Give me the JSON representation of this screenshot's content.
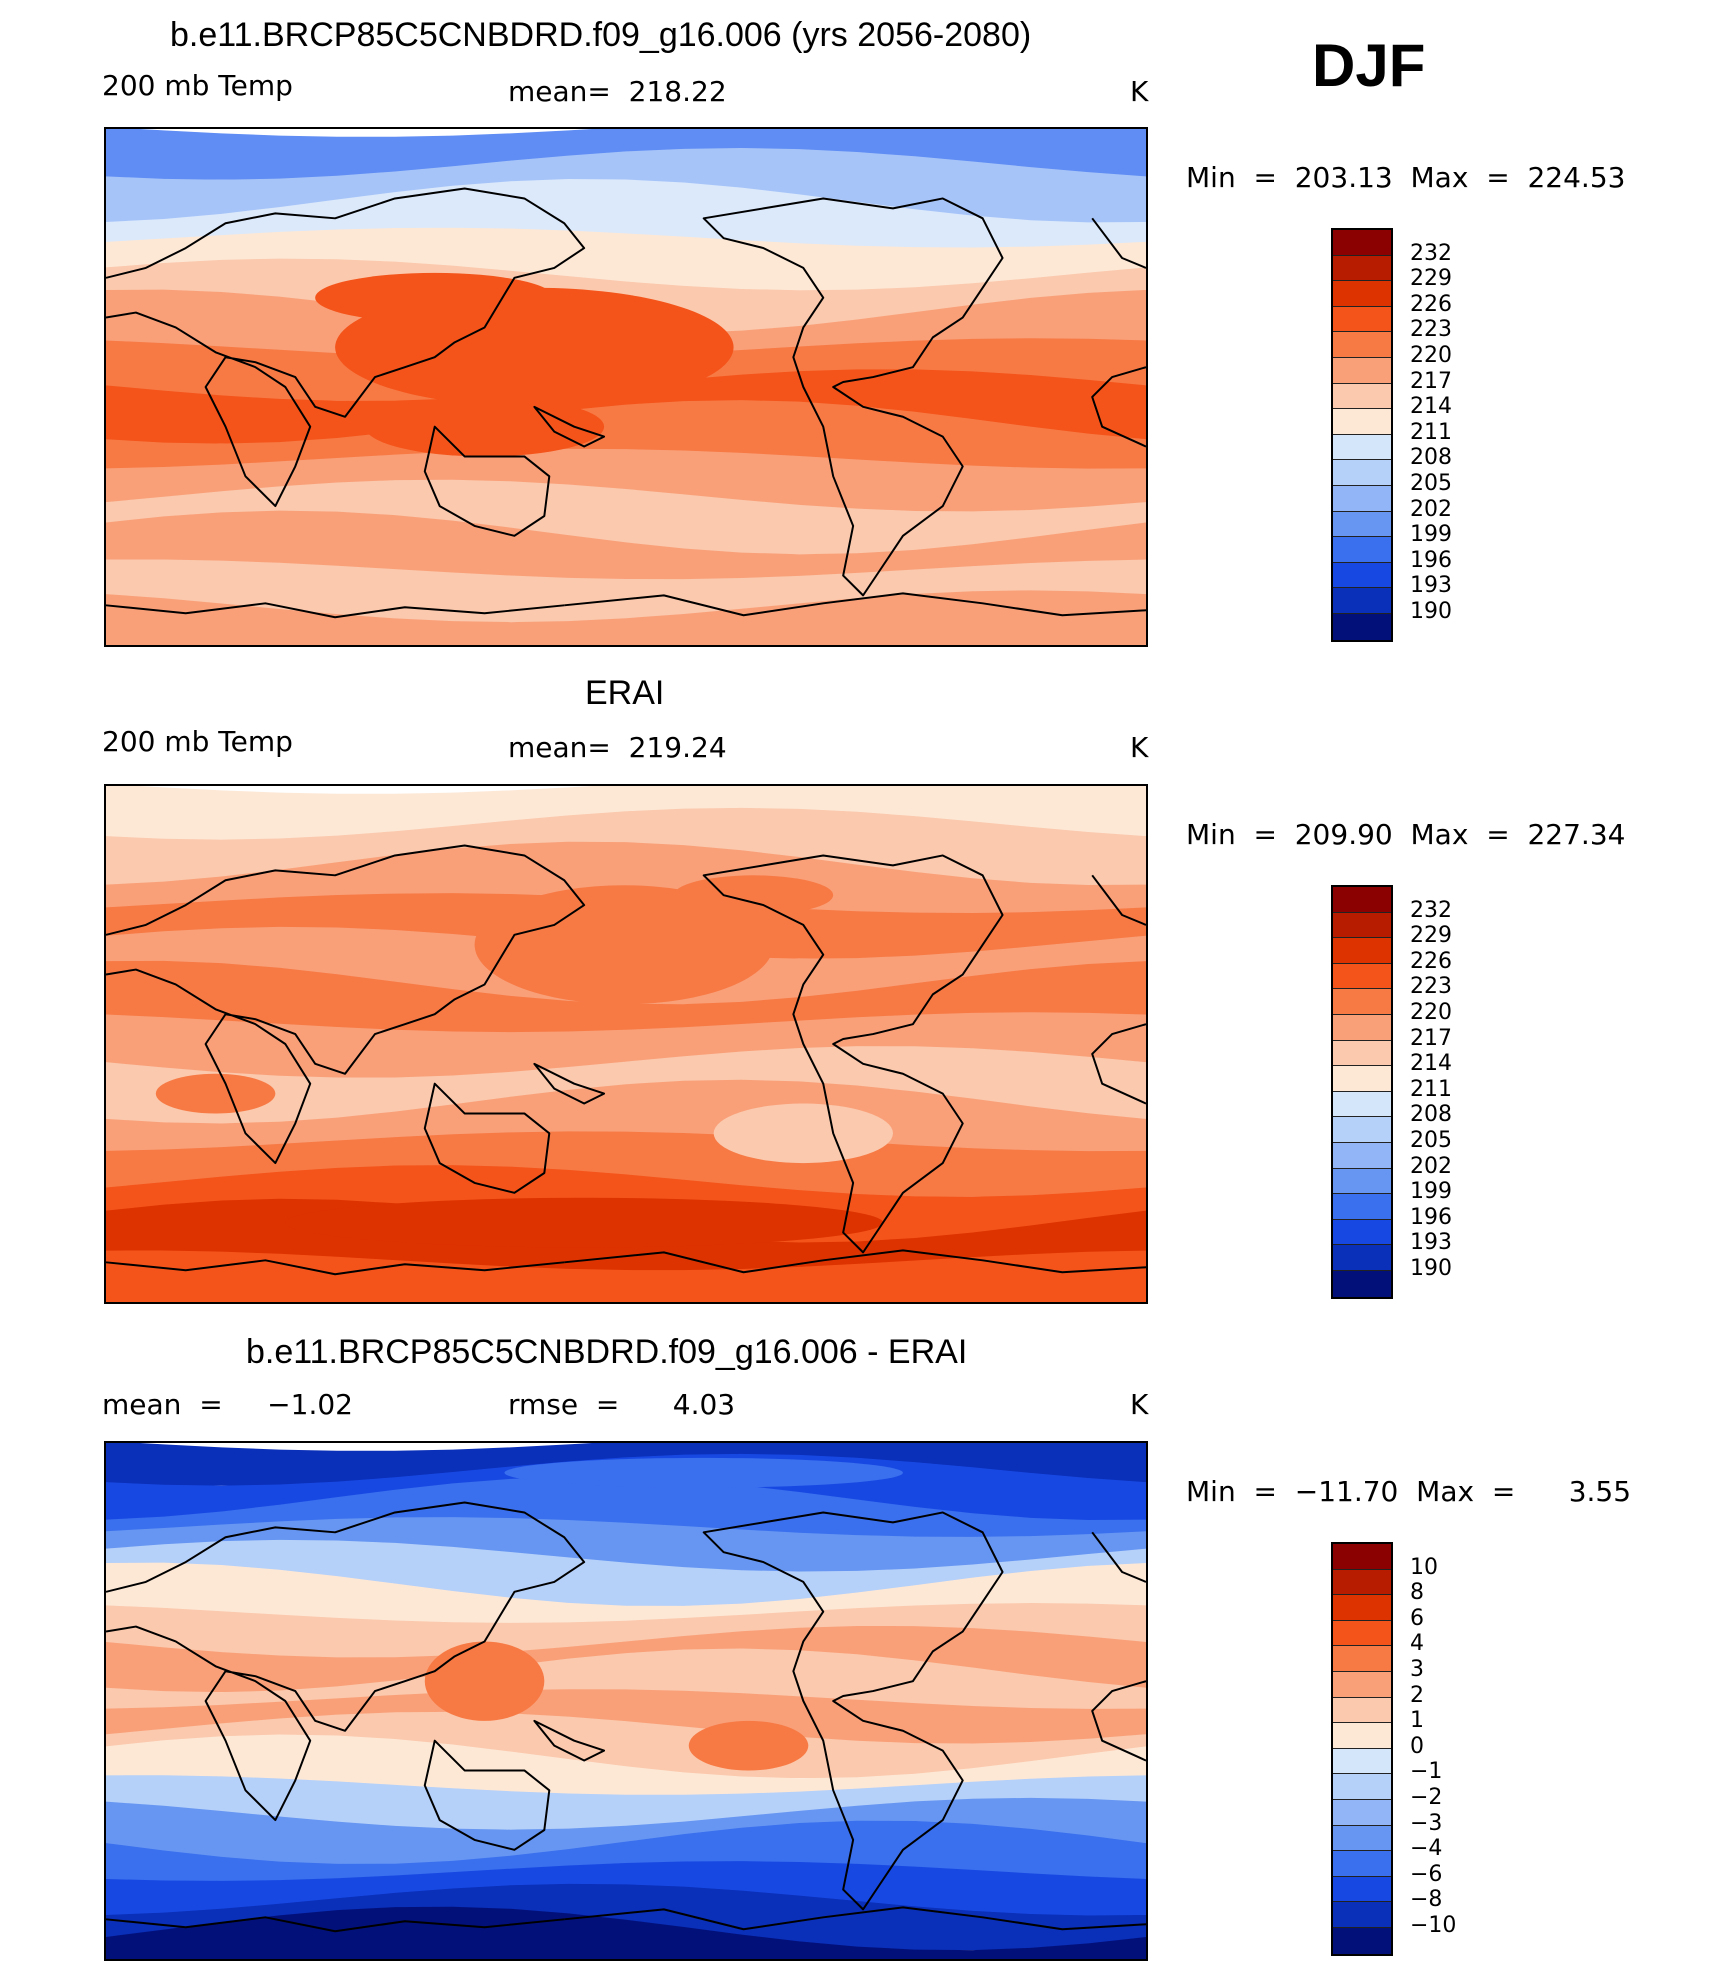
{
  "season": "DJF",
  "panels": [
    {
      "id": "model",
      "title": "b.e11.BRCP85C5CNBDRD.f09_g16.006 (yrs 2056-2080)",
      "left_label": "200 mb Temp",
      "center_label": "mean=  218.22",
      "unit": "K",
      "minmax": "Min  =  203.13  Max  =  224.53",
      "levels": [
        "232",
        "229",
        "226",
        "223",
        "220",
        "217",
        "214",
        "211",
        "208",
        "205",
        "202",
        "199",
        "196",
        "193",
        "190"
      ]
    },
    {
      "id": "obs",
      "title": "ERAI",
      "left_label": "200 mb Temp",
      "center_label": "mean=  219.24",
      "unit": "K",
      "minmax": "Min  =  209.90  Max  =  227.34",
      "levels": [
        "232",
        "229",
        "226",
        "223",
        "220",
        "217",
        "214",
        "211",
        "208",
        "205",
        "202",
        "199",
        "196",
        "193",
        "190"
      ]
    },
    {
      "id": "diff",
      "title": "b.e11.BRCP85C5CNBDRD.f09_g16.006 - ERAI",
      "left_label": "mean  =     −1.02",
      "center_label": "rmse  =      4.03",
      "unit": "K",
      "minmax": "Min  =  −11.70  Max  =      3.55",
      "levels": [
        "10",
        "8",
        "6",
        "4",
        "3",
        "2",
        "1",
        "0",
        "−1",
        "−2",
        "−3",
        "−4",
        "−6",
        "−8",
        "−10"
      ]
    }
  ],
  "colors": {
    "palette": [
      "#8b0000",
      "#b81c00",
      "#dd3300",
      "#f4541a",
      "#f77a45",
      "#f9a079",
      "#fbc9ad",
      "#fde8d6",
      "#d3e6fa",
      "#b5d0f9",
      "#91b5f6",
      "#6696f2",
      "#3a6fee",
      "#1748e2",
      "#0a2fb8",
      "#02107a"
    ],
    "model_bands": [
      "#5f8df4",
      "#a7c4f8",
      "#dbe9fb",
      "#fde8d6",
      "#fbc9ad",
      "#f9a079",
      "#f77a45",
      "#f4541a",
      "#f77a45",
      "#f9a079",
      "#fbc9ad",
      "#f9a079",
      "#fbc9ad",
      "#f9a079"
    ],
    "obs_bands": [
      "#fde8d6",
      "#fbc9ad",
      "#f9a079",
      "#f77a45",
      "#f9a079",
      "#f77a45",
      "#f9a079",
      "#fbc9ad",
      "#f9a079",
      "#f77a45",
      "#f4541a",
      "#dd3300",
      "#f4541a"
    ],
    "diff_bands": [
      "#0a2fb8",
      "#1748e2",
      "#3a6fee",
      "#6696f2",
      "#b5d0f9",
      "#fde8d6",
      "#fbc9ad",
      "#f9a079",
      "#fbc9ad",
      "#f9a079",
      "#fbc9ad",
      "#fde8d6",
      "#b5d0f9",
      "#6696f2",
      "#3a6fee",
      "#1748e2",
      "#0a2fb8",
      "#02107a"
    ]
  }
}
